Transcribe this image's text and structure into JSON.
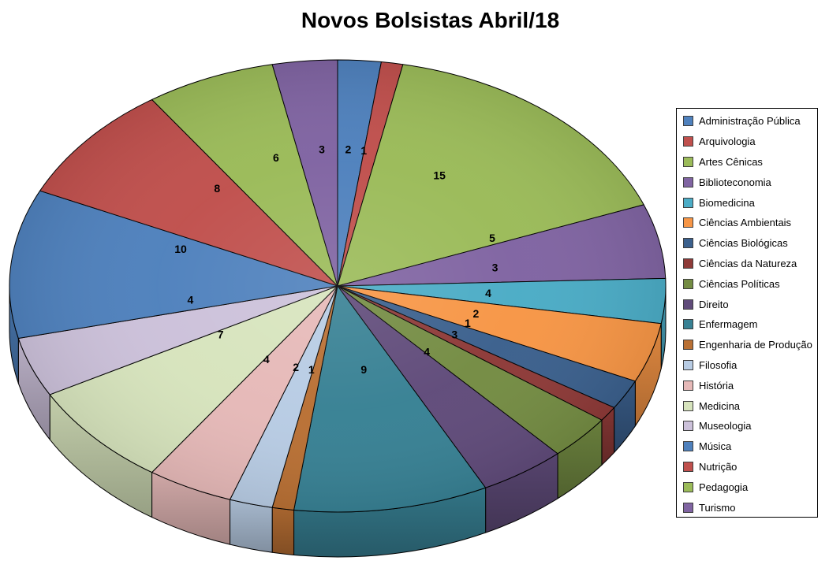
{
  "title": "Novos Bolsistas Abril/18",
  "chart_data": {
    "type": "pie",
    "style": "3d",
    "title": "Novos Bolsistas Abril/18",
    "direction": "clockwise",
    "start_angle_deg": 0,
    "legend_position": "right",
    "data_labels": "value",
    "labels": [
      "Administração Pública",
      "Arquivologia",
      "Artes Cênicas",
      "Biblioteconomia",
      "Biomedicina",
      "Ciências Ambientais",
      "Ciências Biológicas",
      "Ciências da Natureza",
      "Ciências Políticas",
      "Direito",
      "Enfermagem",
      "Engenharia de Produção",
      "Filosofia",
      "História",
      "Medicina",
      "Museologia",
      "Música",
      "Nutrição",
      "Pedagogia",
      "Turismo"
    ],
    "values": [
      2,
      1,
      15,
      5,
      3,
      4,
      2,
      1,
      3,
      4,
      9,
      1,
      2,
      4,
      7,
      4,
      10,
      8,
      6,
      3
    ],
    "colors": [
      "#4F81BD",
      "#C0504D",
      "#9BBB59",
      "#8064A2",
      "#4BACC6",
      "#F79646",
      "#3B608D",
      "#8E3A38",
      "#748C43",
      "#604B7A",
      "#388194",
      "#B97034",
      "#B8CCE4",
      "#E6B9B8",
      "#D7E4BD",
      "#CCC1DA",
      "#4F81BD",
      "#C0504D",
      "#9BBB59",
      "#8064A2"
    ],
    "label_color": "#000000",
    "outline_color": "#000000"
  }
}
